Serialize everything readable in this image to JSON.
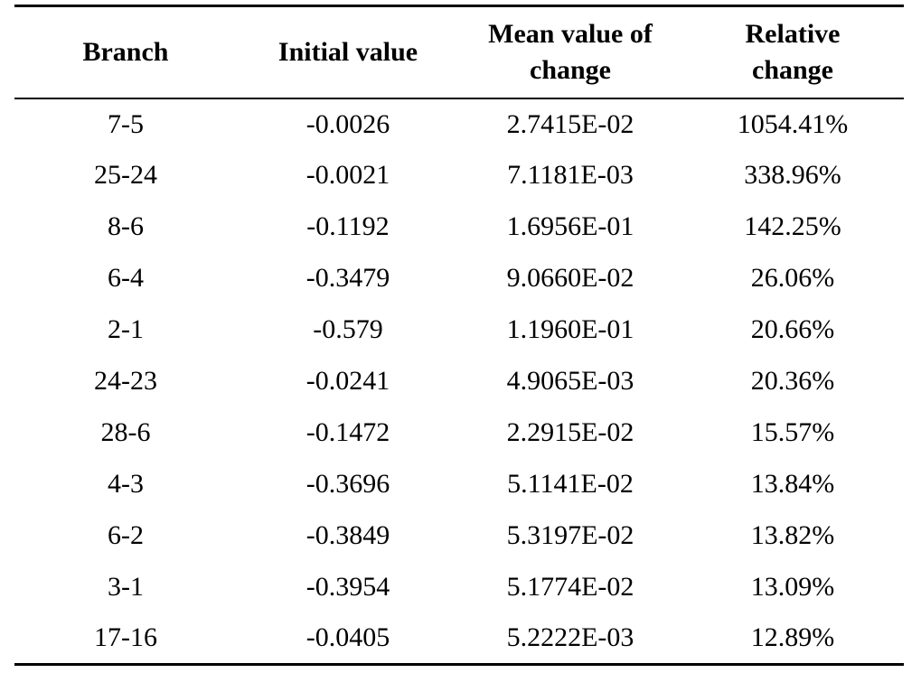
{
  "table": {
    "headers": [
      {
        "line1": "Branch",
        "line2": ""
      },
      {
        "line1": "Initial value",
        "line2": ""
      },
      {
        "line1": "Mean value of",
        "line2": "change"
      },
      {
        "line1": "Relative",
        "line2": "change"
      }
    ],
    "rows": [
      [
        "7-5",
        "-0.0026",
        "2.7415E-02",
        "1054.41%"
      ],
      [
        "25-24",
        "-0.0021",
        "7.1181E-03",
        "338.96%"
      ],
      [
        "8-6",
        "-0.1192",
        "1.6956E-01",
        "142.25%"
      ],
      [
        "6-4",
        "-0.3479",
        "9.0660E-02",
        "26.06%"
      ],
      [
        "2-1",
        "-0.579",
        "1.1960E-01",
        "20.66%"
      ],
      [
        "24-23",
        "-0.0241",
        "4.9065E-03",
        "20.36%"
      ],
      [
        "28-6",
        "-0.1472",
        "2.2915E-02",
        "15.57%"
      ],
      [
        "4-3",
        "-0.3696",
        "5.1141E-02",
        "13.84%"
      ],
      [
        "6-2",
        "-0.3849",
        "5.3197E-02",
        "13.82%"
      ],
      [
        "3-1",
        "-0.3954",
        "5.1774E-02",
        "13.09%"
      ],
      [
        "17-16",
        "-0.0405",
        "5.2222E-03",
        "12.89%"
      ]
    ]
  }
}
